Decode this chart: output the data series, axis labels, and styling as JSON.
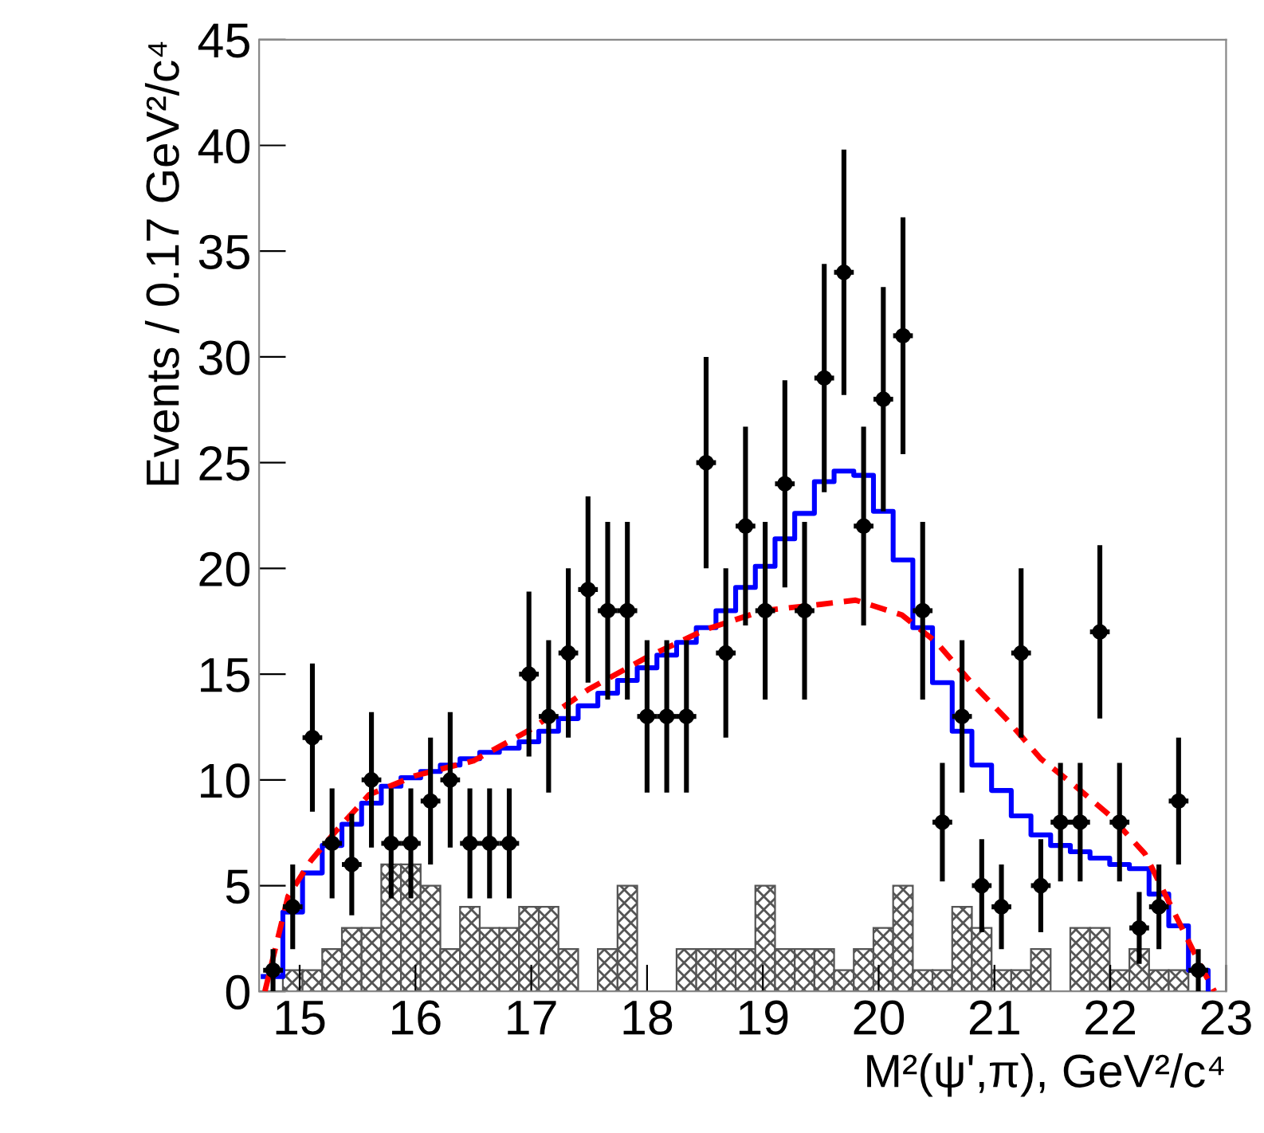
{
  "chart_data": {
    "type": "scatter",
    "xlabel": "M²(ψ',π), GeV²/c⁴",
    "ylabel": "Events / 0.17 GeV²/c⁴",
    "xlim": [
      14.65,
      23
    ],
    "ylim": [
      0,
      45
    ],
    "xticks": [
      15,
      16,
      17,
      18,
      19,
      20,
      21,
      22,
      23
    ],
    "yticks": [
      0,
      5,
      10,
      15,
      20,
      25,
      30,
      35,
      40,
      45
    ],
    "grid": false,
    "legend": false,
    "bins": [
      14.685,
      14.855,
      15.025,
      15.195,
      15.365,
      15.535,
      15.705,
      15.875,
      16.045,
      16.215,
      16.385,
      16.555,
      16.725,
      16.895,
      17.065,
      17.235,
      17.405,
      17.575,
      17.745,
      17.915,
      18.085,
      18.255,
      18.425,
      18.595,
      18.765,
      18.935,
      19.105,
      19.275,
      19.445,
      19.615,
      19.785,
      19.955,
      20.125,
      20.295,
      20.465,
      20.635,
      20.805,
      20.975,
      21.145,
      21.315,
      21.485,
      21.655,
      21.825,
      21.995,
      22.165,
      22.335,
      22.505,
      22.675,
      22.845
    ],
    "series": [
      {
        "type": "histogram",
        "color": "#555555",
        "values": [
          0,
          1,
          1,
          2,
          3,
          3,
          6,
          6,
          5,
          2,
          4,
          3,
          3,
          4,
          4,
          2,
          0,
          2,
          5,
          0,
          0,
          2,
          2,
          2,
          2,
          5,
          2,
          2,
          2,
          1,
          2,
          3,
          5,
          1,
          1,
          4,
          3,
          1,
          1,
          2,
          0,
          3,
          3,
          1,
          2,
          1,
          1,
          0
        ]
      },
      {
        "type": "step",
        "color": "#0000ff",
        "x": [
          14.685,
          14.855,
          15.025,
          15.195,
          15.365,
          15.535,
          15.705,
          15.875,
          16.045,
          16.215,
          16.385,
          16.555,
          16.725,
          16.895,
          17.065,
          17.235,
          17.405,
          17.575,
          17.745,
          17.915,
          18.085,
          18.255,
          18.425,
          18.595,
          18.765,
          18.935,
          19.105,
          19.275,
          19.445,
          19.615,
          19.785,
          19.955,
          20.125,
          20.295,
          20.465,
          20.635,
          20.805,
          20.975,
          21.145,
          21.315,
          21.485,
          21.655,
          21.825,
          21.995,
          22.165,
          22.335,
          22.505,
          22.675,
          22.845
        ],
        "values": [
          0.7,
          3.75,
          5.6,
          6.9,
          7.9,
          8.9,
          9.7,
          10.1,
          10.4,
          10.7,
          11.0,
          11.3,
          11.5,
          11.8,
          12.3,
          12.9,
          13.5,
          14.1,
          14.7,
          15.3,
          15.9,
          16.5,
          17.2,
          18.0,
          19.1,
          20.1,
          21.4,
          22.6,
          24.1,
          24.6,
          24.4,
          22.7,
          20.4,
          17.2,
          14.6,
          12.3,
          10.7,
          9.5,
          8.3,
          7.4,
          6.9,
          6.6,
          6.3,
          6.0,
          5.8,
          4.6,
          3.1,
          1.0,
          0
        ]
      },
      {
        "type": "line",
        "color": "#ff0000",
        "line_style": "dashed",
        "marker": "none",
        "x": [
          14.7,
          14.9,
          15.1,
          15.3,
          15.6,
          16.0,
          16.5,
          17.0,
          17.5,
          18.0,
          18.5,
          19.0,
          19.5,
          19.8,
          20.2,
          20.5,
          20.8,
          21.1,
          21.4,
          21.7,
          22.0,
          22.3,
          22.6,
          22.8,
          22.9
        ],
        "values": [
          0,
          4.5,
          6.2,
          7.5,
          9.3,
          10.2,
          10.9,
          12.4,
          14.3,
          15.8,
          17.1,
          18.0,
          18.3,
          18.5,
          17.8,
          16.5,
          14.6,
          12.9,
          11.0,
          9.7,
          8.3,
          6.5,
          3.2,
          1.0,
          0
        ]
      },
      {
        "color": "#000000",
        "marker": "circle",
        "x": [
          14.77,
          14.94,
          15.11,
          15.28,
          15.45,
          15.62,
          15.79,
          15.96,
          16.13,
          16.3,
          16.47,
          16.64,
          16.81,
          16.98,
          17.15,
          17.32,
          17.49,
          17.66,
          17.83,
          18.0,
          18.17,
          18.34,
          18.51,
          18.68,
          18.85,
          19.02,
          19.19,
          19.36,
          19.53,
          19.7,
          19.87,
          20.04,
          20.21,
          20.38,
          20.55,
          20.72,
          20.89,
          21.06,
          21.23,
          21.4,
          21.57,
          21.74,
          21.91,
          22.08,
          22.25,
          22.42,
          22.59,
          22.76
        ],
        "values": [
          1,
          4,
          12,
          7,
          6,
          10,
          7,
          7,
          9,
          10,
          7,
          7,
          7,
          15,
          13,
          16,
          19,
          18,
          18,
          13,
          13,
          13,
          25,
          16,
          22,
          18,
          24,
          18,
          29,
          34,
          22,
          28,
          31,
          18,
          8,
          13,
          5,
          4,
          16,
          5,
          8,
          8,
          17,
          8,
          3,
          4,
          9,
          1
        ],
        "errors": [
          1,
          2,
          3.5,
          2.6,
          2.4,
          3.2,
          2.6,
          2.6,
          3,
          3.2,
          2.6,
          2.6,
          2.6,
          3.9,
          3.6,
          4,
          4.4,
          4.2,
          4.2,
          3.6,
          3.6,
          3.6,
          5,
          4,
          4.7,
          4.2,
          4.9,
          4.2,
          5.4,
          5.8,
          4.7,
          5.3,
          5.6,
          4.2,
          2.8,
          3.6,
          2.2,
          2,
          4,
          2.2,
          2.8,
          2.8,
          4.1,
          2.8,
          1.7,
          2,
          3,
          1
        ],
        "xerrors": [
          0.085,
          0.085,
          0.085,
          0.085,
          0.085,
          0.085,
          0.085,
          0.085,
          0.085,
          0.085,
          0.085,
          0.085,
          0.085,
          0.085,
          0.085,
          0.085,
          0.085,
          0.085,
          0.085,
          0.085,
          0.085,
          0.085,
          0.085,
          0.085,
          0.085,
          0.085,
          0.085,
          0.085,
          0.085,
          0.085,
          0.085,
          0.085,
          0.085,
          0.085,
          0.085,
          0.085,
          0.085,
          0.085,
          0.085,
          0.085,
          0.085,
          0.085,
          0.085,
          0.085,
          0.085,
          0.085,
          0.085,
          0.085
        ]
      }
    ]
  }
}
